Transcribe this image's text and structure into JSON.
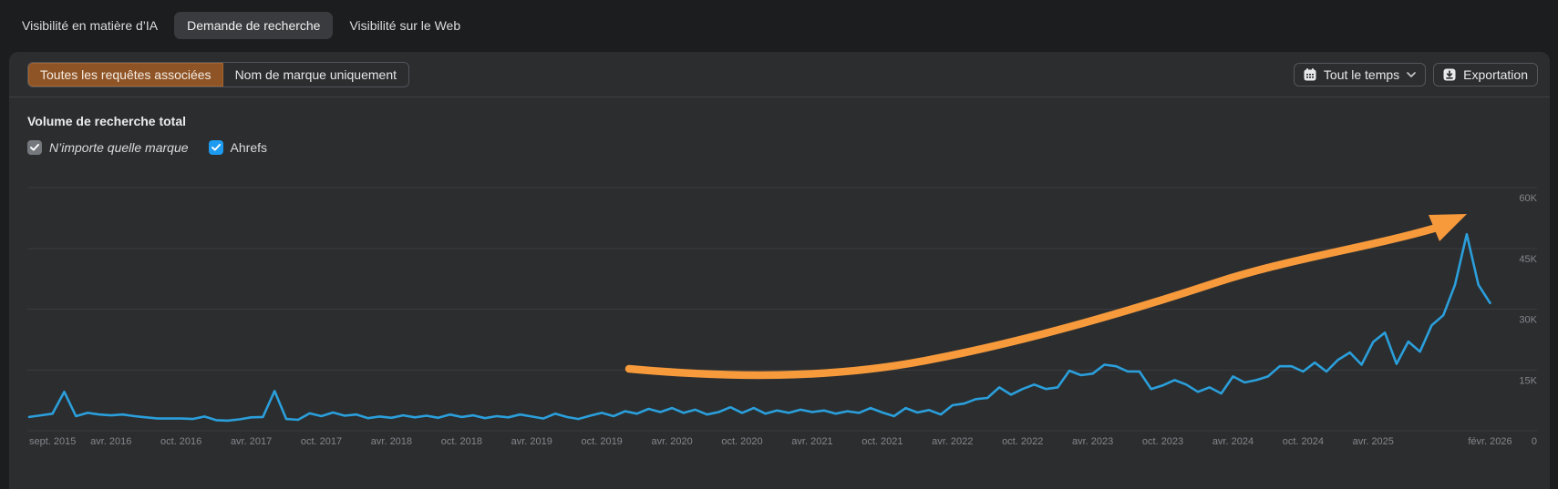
{
  "tabs": [
    {
      "label": "Visibilité en matière d’IA",
      "active": false
    },
    {
      "label": "Demande de recherche",
      "active": true
    },
    {
      "label": "Visibilité sur le Web",
      "active": false
    }
  ],
  "toolbar": {
    "segments": [
      {
        "label": "Toutes les requêtes associées",
        "active": true
      },
      {
        "label": "Nom de marque uniquement",
        "active": false
      }
    ],
    "time_range_label": "Tout le temps",
    "export_label": "Exportation"
  },
  "chart_header": {
    "title": "Volume de recherche total",
    "legend": [
      {
        "label": "N’importe quelle marque",
        "checked": true,
        "color": "#75797e",
        "italic": true
      },
      {
        "label": "Ahrefs",
        "checked": true,
        "color": "#1d9bf0",
        "italic": false
      }
    ]
  },
  "chart_data": {
    "type": "line",
    "title": "Volume de recherche total",
    "x_start": "sept. 2015",
    "x_end": "févr. 2026",
    "x_tick_labels": [
      "sept. 2015",
      "avr. 2016",
      "oct. 2016",
      "avr. 2017",
      "oct. 2017",
      "avr. 2018",
      "oct. 2018",
      "avr. 2019",
      "oct. 2019",
      "avr. 2020",
      "oct. 2020",
      "avr. 2021",
      "oct. 2021",
      "avr. 2022",
      "oct. 2022",
      "avr. 2023",
      "oct. 2023",
      "avr. 2024",
      "oct. 2024",
      "avr. 2025",
      "févr. 2026"
    ],
    "x_tick_month_index": [
      0,
      7,
      13,
      19,
      25,
      31,
      37,
      43,
      49,
      55,
      61,
      67,
      73,
      79,
      85,
      91,
      97,
      103,
      109,
      115,
      125
    ],
    "y_tick_labels": [
      "60K",
      "45K",
      "30K",
      "15K",
      "0"
    ],
    "y_tick_values_k": [
      60,
      45,
      30,
      15,
      0
    ],
    "ylim_k": [
      0,
      60
    ],
    "grid": "horizontal",
    "series": [
      {
        "name": "Ahrefs",
        "color": "#2b9fdb",
        "unit": "K searches/month",
        "values_thousands": [
          3.4,
          3.8,
          4.2,
          9.6,
          3.6,
          4.4,
          4.0,
          3.8,
          4.0,
          3.6,
          3.3,
          3.0,
          3.0,
          3.0,
          2.9,
          3.5,
          2.6,
          2.5,
          2.8,
          3.3,
          3.4,
          9.8,
          2.9,
          2.7,
          4.3,
          3.6,
          4.5,
          3.7,
          4.0,
          3.1,
          3.5,
          3.2,
          3.8,
          3.3,
          3.7,
          3.2,
          4.0,
          3.4,
          3.8,
          3.1,
          3.6,
          3.3,
          4.0,
          3.5,
          3.0,
          4.2,
          3.4,
          2.9,
          3.7,
          4.4,
          3.6,
          4.8,
          4.2,
          5.4,
          4.6,
          5.6,
          4.4,
          5.2,
          4.0,
          4.6,
          5.8,
          4.4,
          5.6,
          4.2,
          5.0,
          4.4,
          5.2,
          4.6,
          5.0,
          4.2,
          4.8,
          4.4,
          5.6,
          4.5,
          3.6,
          5.6,
          4.5,
          5.1,
          4.0,
          6.3,
          6.7,
          7.8,
          8.1,
          10.7,
          8.9,
          10.3,
          11.4,
          10.3,
          10.7,
          14.8,
          13.7,
          14.1,
          16.3,
          15.9,
          14.6,
          14.6,
          10.3,
          11.2,
          12.5,
          11.4,
          9.6,
          10.7,
          9.2,
          13.4,
          11.9,
          12.5,
          13.4,
          15.9,
          15.9,
          14.6,
          16.8,
          14.6,
          17.5,
          19.3,
          16.3,
          21.9,
          24.2,
          16.5,
          22.0,
          19.5,
          26.0,
          28.5,
          36.0,
          48.5,
          36.0,
          31.5
        ]
      }
    ],
    "annotations": [
      {
        "type": "arrow",
        "color": "#f79a3c",
        "meaning": "accelerating-growth-trend"
      }
    ]
  }
}
